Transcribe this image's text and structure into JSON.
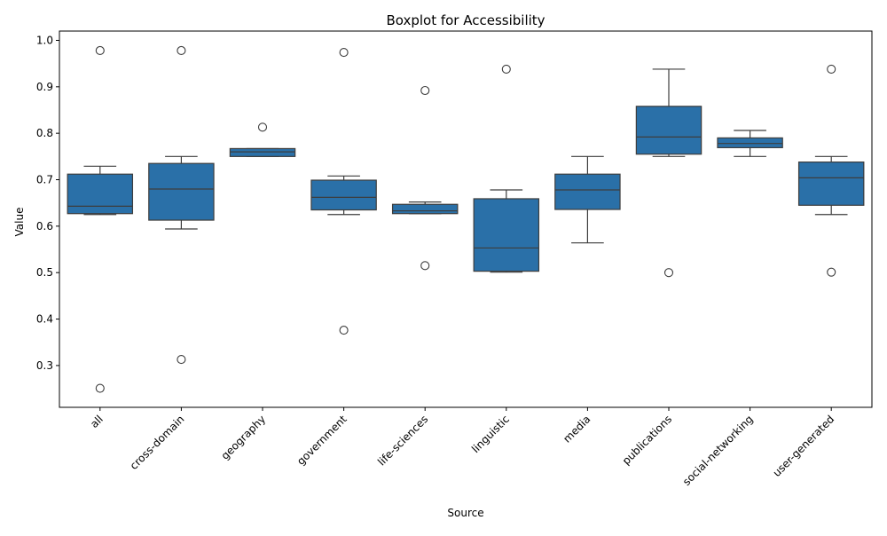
{
  "chart_data": {
    "type": "boxplot",
    "title": "Boxplot for Accessibility",
    "xlabel": "Source",
    "ylabel": "Value",
    "ylim": [
      0.21,
      1.02
    ],
    "yticks": [
      0.3,
      0.4,
      0.5,
      0.6,
      0.7,
      0.8,
      0.9,
      1.0
    ],
    "ytick_labels": [
      "0.3",
      "0.4",
      "0.5",
      "0.6",
      "0.7",
      "0.8",
      "0.9",
      "1.0"
    ],
    "grid": false,
    "box_color": "#2a70a8",
    "line_color": "#3d3d3d",
    "categories": [
      "all",
      "cross-domain",
      "geography",
      "government",
      "life-sciences",
      "linguistic",
      "media",
      "publications",
      "social-networking",
      "user-generated"
    ],
    "boxes": [
      {
        "category": "all",
        "whisker_low": 0.625,
        "q1": 0.627,
        "median": 0.643,
        "q3": 0.712,
        "whisker_high": 0.729,
        "outliers": [
          0.978,
          0.251
        ]
      },
      {
        "category": "cross-domain",
        "whisker_low": 0.594,
        "q1": 0.613,
        "median": 0.68,
        "q3": 0.735,
        "whisker_high": 0.75,
        "outliers": [
          0.978,
          0.313
        ]
      },
      {
        "category": "geography",
        "whisker_low": 0.75,
        "q1": 0.75,
        "median": 0.76,
        "q3": 0.767,
        "whisker_high": 0.767,
        "outliers": [
          0.813
        ]
      },
      {
        "category": "government",
        "whisker_low": 0.625,
        "q1": 0.635,
        "median": 0.662,
        "q3": 0.699,
        "whisker_high": 0.708,
        "outliers": [
          0.974,
          0.376
        ]
      },
      {
        "category": "life-sciences",
        "whisker_low": 0.627,
        "q1": 0.627,
        "median": 0.633,
        "q3": 0.647,
        "whisker_high": 0.652,
        "outliers": [
          0.892,
          0.515
        ]
      },
      {
        "category": "linguistic",
        "whisker_low": 0.501,
        "q1": 0.503,
        "median": 0.553,
        "q3": 0.659,
        "whisker_high": 0.678,
        "outliers": [
          0.938
        ]
      },
      {
        "category": "media",
        "whisker_low": 0.564,
        "q1": 0.636,
        "median": 0.678,
        "q3": 0.712,
        "whisker_high": 0.75,
        "outliers": []
      },
      {
        "category": "publications",
        "whisker_low": 0.75,
        "q1": 0.755,
        "median": 0.792,
        "q3": 0.858,
        "whisker_high": 0.938,
        "outliers": [
          0.5
        ]
      },
      {
        "category": "social-networking",
        "whisker_low": 0.75,
        "q1": 0.769,
        "median": 0.778,
        "q3": 0.79,
        "whisker_high": 0.806,
        "outliers": []
      },
      {
        "category": "user-generated",
        "whisker_low": 0.625,
        "q1": 0.645,
        "median": 0.704,
        "q3": 0.738,
        "whisker_high": 0.75,
        "outliers": [
          0.938,
          0.501
        ]
      }
    ]
  }
}
